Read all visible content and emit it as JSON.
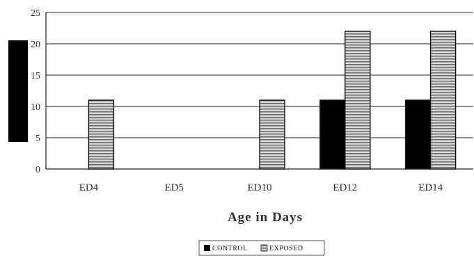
{
  "chart_data": {
    "type": "bar",
    "categories": [
      "ED4",
      "ED5",
      "ED10",
      "ED12",
      "ED14"
    ],
    "series": [
      {
        "name": "CONTROL",
        "values": [
          0,
          0,
          0,
          11,
          11
        ],
        "color": "#000000",
        "pattern": "solid"
      },
      {
        "name": "EXPOSED",
        "values": [
          11,
          0,
          11,
          22,
          22
        ],
        "color": "#b0b0b0",
        "pattern": "horizontal-stripes"
      }
    ],
    "title": "",
    "xlabel": "Age in Days",
    "ylabel": "",
    "ylim": [
      0,
      25
    ],
    "yticks": [
      "0",
      "5",
      "10",
      "15",
      "20",
      "25"
    ],
    "grid": "horizontal",
    "legend_position": "bottom-center"
  }
}
